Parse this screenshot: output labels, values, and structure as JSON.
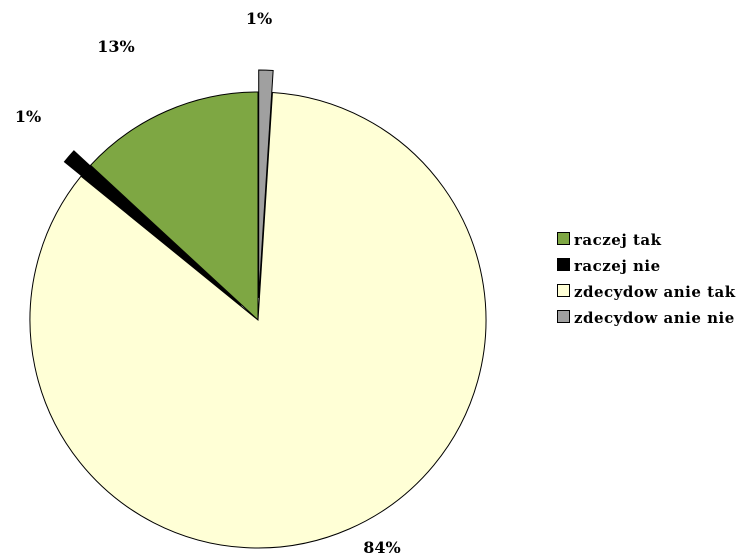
{
  "chart_data": {
    "type": "pie",
    "title": "",
    "legend_position": "right",
    "slices": [
      {
        "name": "raczej tak",
        "value": 13,
        "label": "13%",
        "color": "#7ea743",
        "exploded": false
      },
      {
        "name": "raczej nie",
        "value": 1,
        "label": "1%",
        "color": "#000000",
        "exploded": true
      },
      {
        "name": "zdecydow anie tak",
        "value": 84,
        "label": "84%",
        "color": "#ffffd6",
        "exploded": false
      },
      {
        "name": "zdecydow anie nie",
        "value": 1,
        "label": "1%",
        "color": "#a0a0a0",
        "exploded": true
      }
    ]
  }
}
